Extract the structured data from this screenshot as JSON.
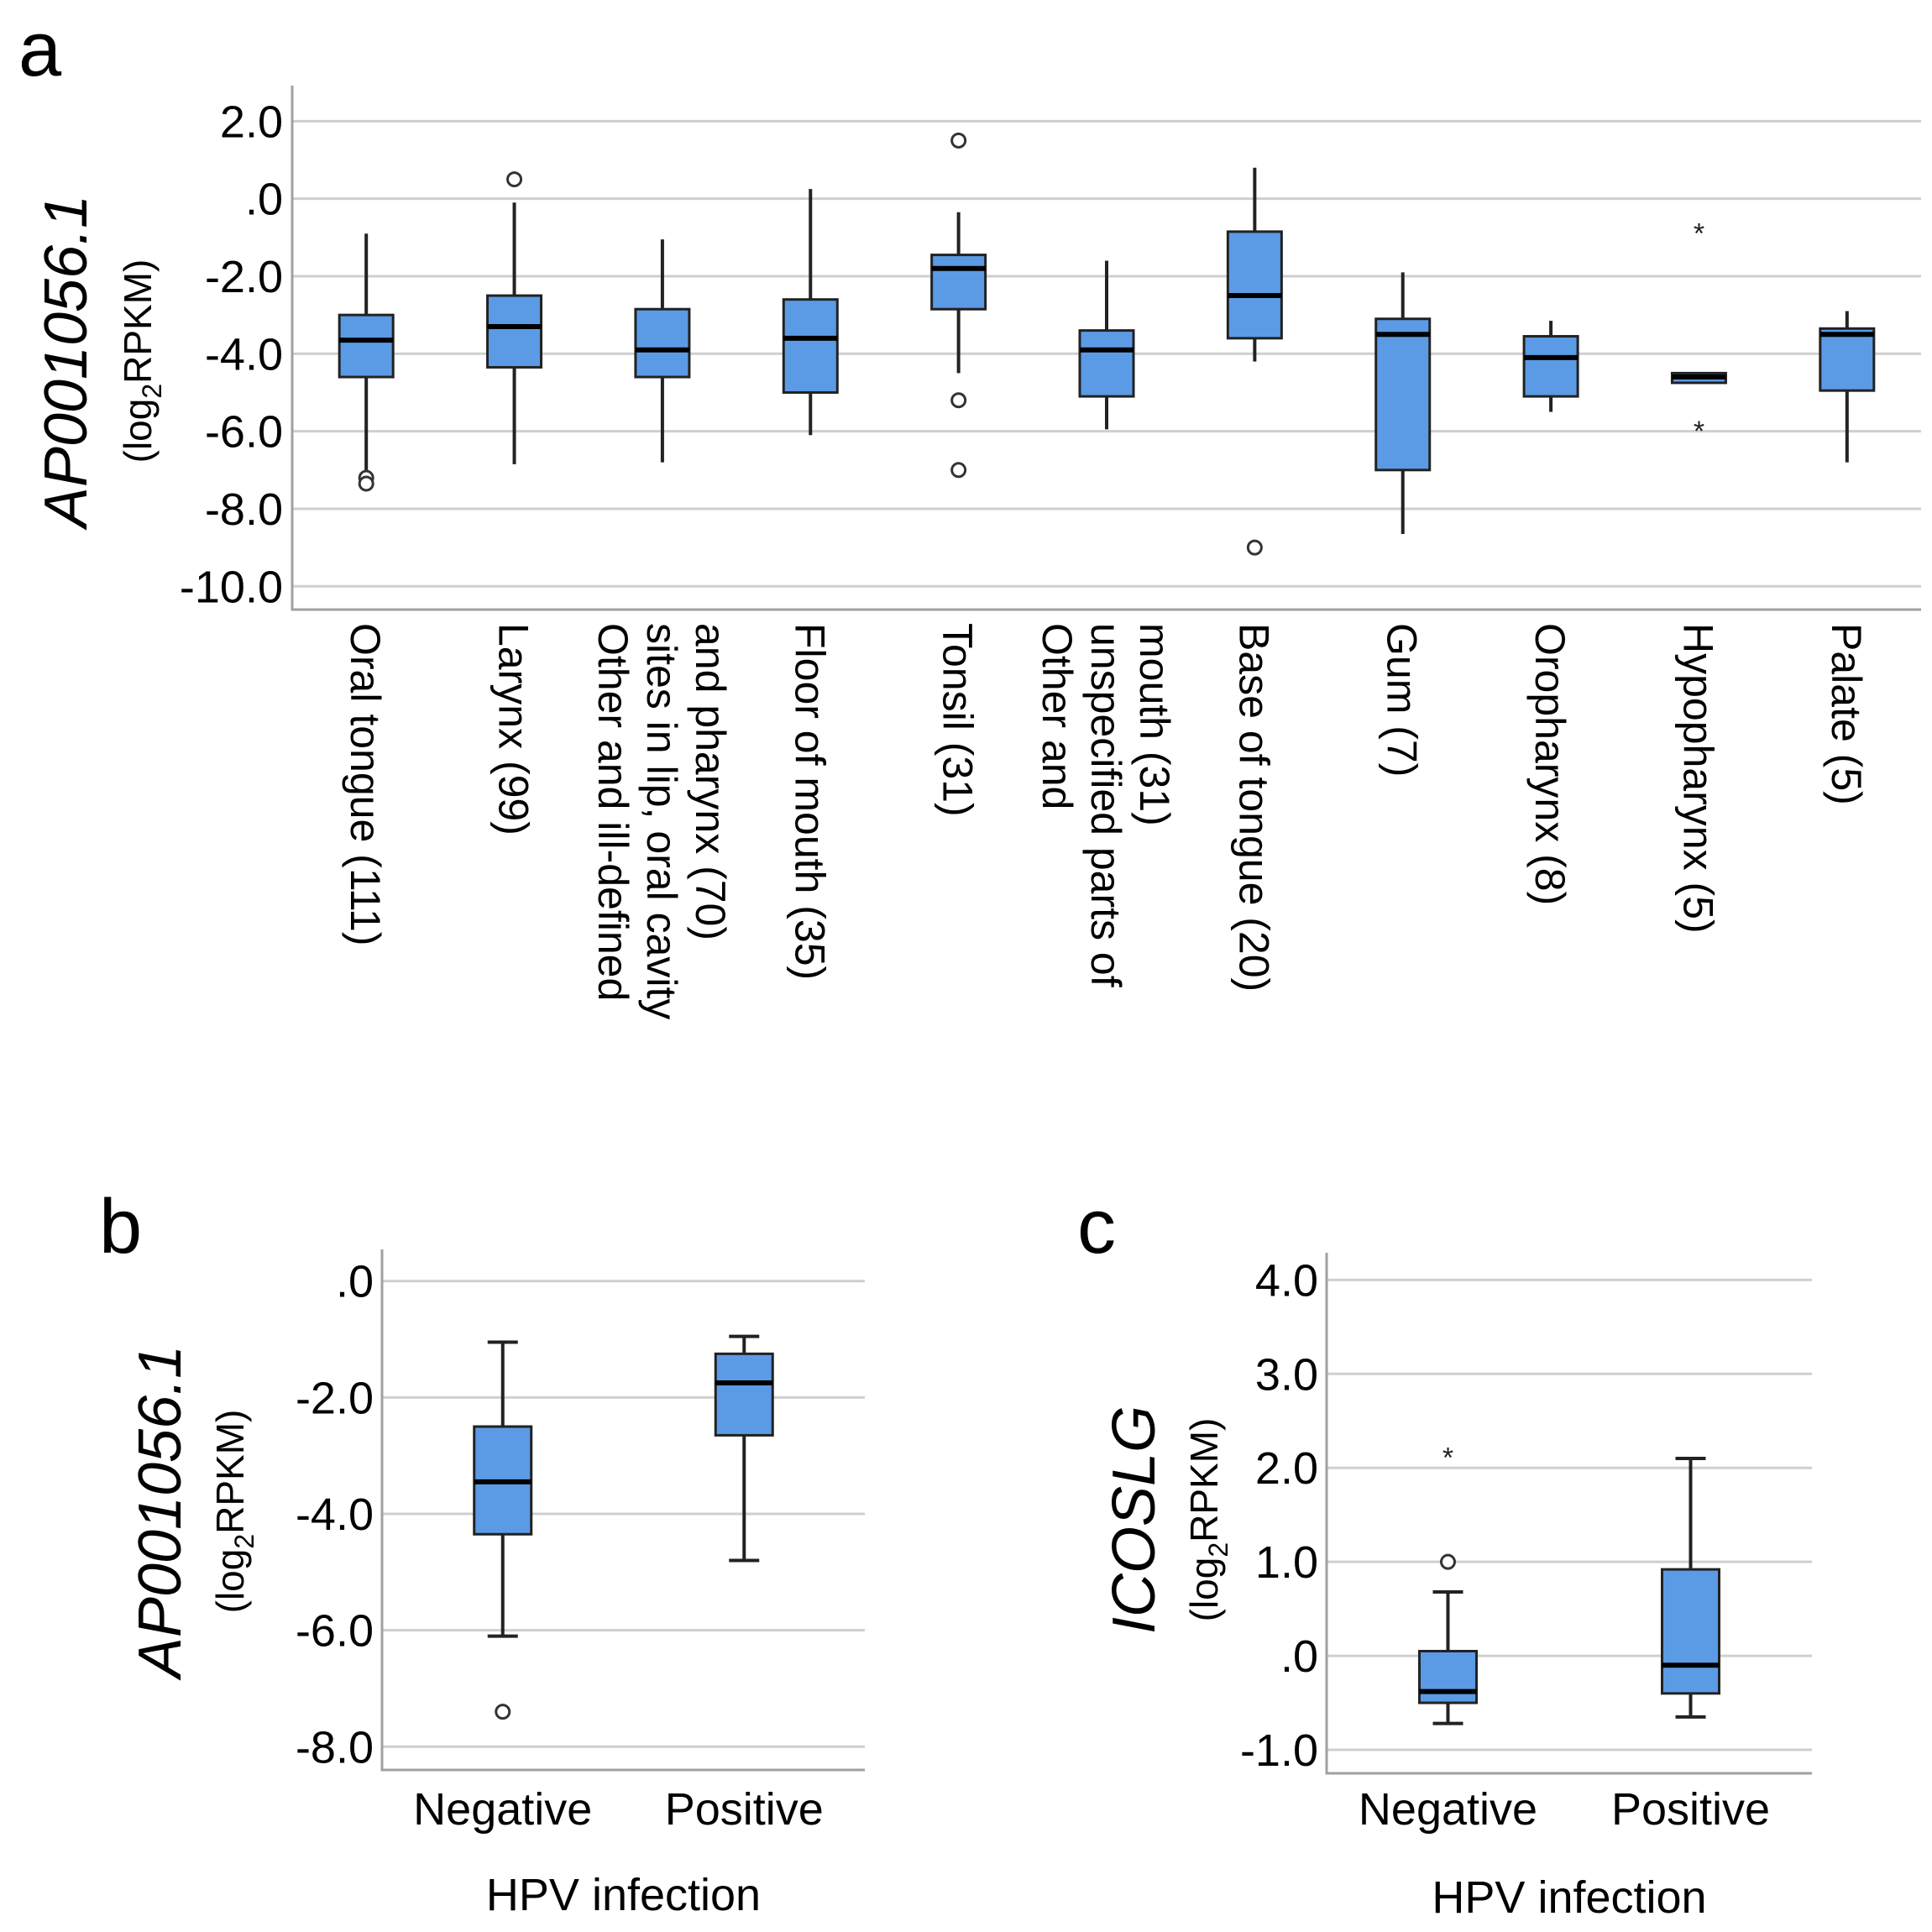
{
  "chart_data": [
    {
      "panel": "a",
      "type": "box",
      "ylabel": "AP001056.1",
      "yunit": [
        "(log",
        "2",
        "RPKM)"
      ],
      "ylim": [
        -10.6,
        2.7
      ],
      "yticks": [
        2,
        0,
        -2,
        -4,
        -6,
        -8,
        -10
      ],
      "ytick_labels": [
        "2.0",
        ".0",
        "-2.0",
        "-4.0",
        "-6.0",
        "-8.0",
        "-10.0"
      ],
      "categories": [
        {
          "lines": [
            "Oral tongue (111)"
          ],
          "q1": -4.6,
          "median": -3.65,
          "q3": -3.0,
          "wlo": -7.0,
          "whi": -0.9,
          "outliers": [
            -7.2,
            -7.35
          ],
          "extremes": []
        },
        {
          "lines": [
            "Larynx (99)"
          ],
          "q1": -4.35,
          "median": -3.3,
          "q3": -2.5,
          "wlo": -6.85,
          "whi": -0.1,
          "outliers": [
            0.5
          ],
          "extremes": []
        },
        {
          "lines": [
            "Other and ill-defined",
            "sites in lip, oral cavity",
            "and pharynx (70)"
          ],
          "q1": -4.6,
          "median": -3.9,
          "q3": -2.85,
          "wlo": -6.8,
          "whi": -1.05,
          "outliers": [],
          "extremes": []
        },
        {
          "lines": [
            "Floor of mouth (35)"
          ],
          "q1": -5.0,
          "median": -3.6,
          "q3": -2.6,
          "wlo": -6.1,
          "whi": 0.25,
          "outliers": [],
          "extremes": []
        },
        {
          "lines": [
            "Tonsil (31)"
          ],
          "q1": -2.85,
          "median": -1.8,
          "q3": -1.45,
          "wlo": -4.5,
          "whi": -0.35,
          "outliers": [
            1.5,
            -5.2,
            -7.0
          ],
          "extremes": []
        },
        {
          "lines": [
            "Other and",
            "unspecified parts of",
            "mouth (31)"
          ],
          "q1": -5.1,
          "median": -3.9,
          "q3": -3.4,
          "wlo": -5.95,
          "whi": -1.6,
          "outliers": [],
          "extremes": []
        },
        {
          "lines": [
            "Base of tongue (20)"
          ],
          "q1": -3.6,
          "median": -2.5,
          "q3": -0.85,
          "wlo": -4.2,
          "whi": 0.8,
          "outliers": [
            -9.0
          ],
          "extremes": []
        },
        {
          "lines": [
            "Gum (7)"
          ],
          "q1": -7.0,
          "median": -3.5,
          "q3": -3.1,
          "wlo": -8.65,
          "whi": -1.9,
          "outliers": [],
          "extremes": []
        },
        {
          "lines": [
            "Oropharynx (8)"
          ],
          "q1": -5.1,
          "median": -4.1,
          "q3": -3.55,
          "wlo": -5.5,
          "whi": -3.15,
          "outliers": [],
          "extremes": []
        },
        {
          "lines": [
            "Hypopharynx (5)"
          ],
          "q1": -4.75,
          "median": -4.6,
          "q3": -4.5,
          "wlo": -4.75,
          "whi": -4.5,
          "outliers": [],
          "extremes": [
            -0.8,
            -5.9
          ]
        },
        {
          "lines": [
            "Palate (5)"
          ],
          "q1": -4.95,
          "median": -3.5,
          "q3": -3.35,
          "wlo": -6.8,
          "whi": -2.9,
          "outliers": [],
          "extremes": []
        }
      ]
    },
    {
      "panel": "b",
      "type": "box",
      "ylabel": "AP001056.1",
      "yunit": [
        "(log",
        "2",
        "RPKM)"
      ],
      "ylim": [
        -8.4,
        0.4
      ],
      "yticks": [
        0,
        -2,
        -4,
        -6,
        -8
      ],
      "ytick_labels": [
        ".0",
        "-2.0",
        "-4.0",
        "-6.0",
        "-8.0"
      ],
      "xtitle": "HPV infection",
      "categories": [
        {
          "lines": [
            "Negative"
          ],
          "q1": -4.35,
          "median": -3.45,
          "q3": -2.5,
          "wlo": -6.1,
          "whi": -1.05,
          "outliers": [
            -7.4
          ],
          "extremes": []
        },
        {
          "lines": [
            "Positive"
          ],
          "q1": -2.65,
          "median": -1.75,
          "q3": -1.25,
          "wlo": -4.8,
          "whi": -0.95,
          "outliers": [],
          "extremes": []
        }
      ]
    },
    {
      "panel": "c",
      "type": "box",
      "ylabel": "ICOSLG",
      "yunit": [
        "(log",
        "2",
        "RPKM)"
      ],
      "ylim": [
        -1.25,
        4.2
      ],
      "yticks": [
        4,
        3,
        2,
        1,
        0,
        -1
      ],
      "ytick_labels": [
        "4.0",
        "3.0",
        "2.0",
        "1.0",
        ".0",
        "-1.0"
      ],
      "xtitle": "HPV infection",
      "categories": [
        {
          "lines": [
            "Negative"
          ],
          "q1": -0.5,
          "median": -0.38,
          "q3": 0.05,
          "wlo": -0.72,
          "whi": 0.68,
          "outliers": [
            1.0
          ],
          "extremes": [
            2.15
          ]
        },
        {
          "lines": [
            "Positive"
          ],
          "q1": -0.4,
          "median": -0.1,
          "q3": 0.92,
          "wlo": -0.65,
          "whi": 2.1,
          "outliers": [],
          "extremes": []
        }
      ]
    }
  ]
}
